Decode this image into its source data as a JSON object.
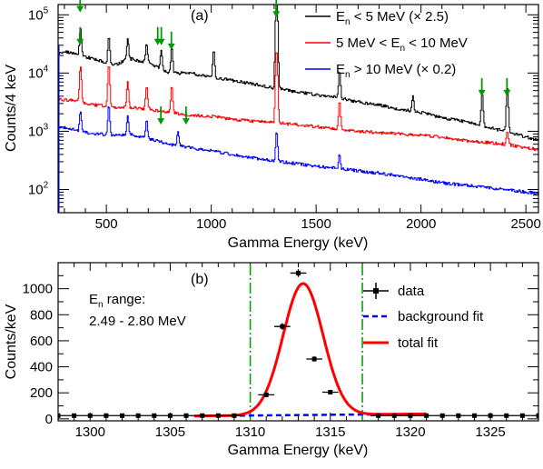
{
  "chart_data": [
    {
      "type": "line",
      "panel_label": "(a)",
      "xlabel": "Gamma Energy (keV)",
      "ylabel": "Counts/4 keV",
      "x_scale": "linear",
      "y_scale": "log",
      "xlim": [
        270,
        2560
      ],
      "ylim": [
        40,
        150000
      ],
      "x_ticks": [
        500,
        1000,
        1500,
        2000,
        2500
      ],
      "x_tick_labels": [
        "500",
        "1000",
        "1500",
        "2000",
        "2500"
      ],
      "y_ticks": [
        100,
        1000,
        10000,
        100000
      ],
      "y_tick_labels": [
        "10",
        "10",
        "10",
        "10"
      ],
      "y_tick_exponents": [
        "2",
        "3",
        "4",
        "5"
      ],
      "legend_position": "top-right",
      "series": [
        {
          "name": "E_n < 5 MeV (× 2.5)",
          "legend_main": "E",
          "legend_sub": "n",
          "legend_rest": " < 5 MeV  (× 2.5)",
          "color": "#000000",
          "x": [
            280,
            300,
            350,
            400,
            450,
            500,
            550,
            600,
            700,
            800,
            900,
            1000,
            1100,
            1200,
            1300,
            1400,
            1500,
            1600,
            1700,
            1800,
            1900,
            2000,
            2100,
            2200,
            2300,
            2400,
            2500,
            2560
          ],
          "y": [
            22000,
            23000,
            22000,
            19000,
            17000,
            15000,
            14000,
            18000,
            15000,
            10000,
            10000,
            8500,
            7500,
            6500,
            5500,
            4800,
            4200,
            3800,
            3200,
            2800,
            2400,
            2100,
            1700,
            1500,
            1200,
            1000,
            800,
            700
          ],
          "peaks": [
            {
              "x": 375,
              "y": 58000
            },
            {
              "x": 510,
              "y": 42000
            },
            {
              "x": 600,
              "y": 38000
            },
            {
              "x": 690,
              "y": 32000
            },
            {
              "x": 760,
              "y": 24000
            },
            {
              "x": 810,
              "y": 28000
            },
            {
              "x": 1010,
              "y": 25000
            },
            {
              "x": 1310,
              "y": 230000
            },
            {
              "x": 1610,
              "y": 11000
            },
            {
              "x": 1960,
              "y": 4200
            },
            {
              "x": 2290,
              "y": 4500
            },
            {
              "x": 2410,
              "y": 6000
            }
          ]
        },
        {
          "name": "5 MeV < E_n < 10 MeV",
          "legend_main": "5 MeV < E",
          "legend_sub": "n",
          "legend_rest": " < 10 MeV",
          "color": "#ff0000",
          "x": [
            280,
            300,
            350,
            400,
            450,
            500,
            550,
            600,
            700,
            800,
            900,
            1000,
            1100,
            1200,
            1300,
            1400,
            1500,
            1600,
            1700,
            1800,
            1900,
            2000,
            2100,
            2200,
            2300,
            2400,
            2500,
            2560
          ],
          "y": [
            3500,
            3500,
            3300,
            3000,
            2800,
            2700,
            2500,
            2600,
            2400,
            2100,
            1900,
            1800,
            1600,
            1500,
            1400,
            1300,
            1200,
            1100,
            1000,
            950,
            900,
            850,
            800,
            700,
            650,
            600,
            520,
            480
          ],
          "peaks": [
            {
              "x": 375,
              "y": 13000
            },
            {
              "x": 510,
              "y": 14000
            },
            {
              "x": 600,
              "y": 7000
            },
            {
              "x": 690,
              "y": 6000
            },
            {
              "x": 810,
              "y": 6000
            },
            {
              "x": 1310,
              "y": 25000
            },
            {
              "x": 1610,
              "y": 3300
            },
            {
              "x": 2410,
              "y": 1000
            }
          ]
        },
        {
          "name": "E_n > 10 MeV (× 0.2)",
          "legend_main": "E",
          "legend_sub": "n",
          "legend_rest": " > 10 MeV  (× 0.2)",
          "color": "#0000ff",
          "x": [
            280,
            300,
            350,
            400,
            450,
            500,
            550,
            600,
            700,
            800,
            900,
            1000,
            1100,
            1200,
            1300,
            1400,
            1500,
            1600,
            1700,
            1800,
            1900,
            2000,
            2100,
            2200,
            2300,
            2400,
            2500,
            2560
          ],
          "y": [
            1150,
            1150,
            1050,
            950,
            900,
            880,
            850,
            900,
            750,
            600,
            520,
            460,
            400,
            350,
            310,
            280,
            250,
            230,
            210,
            190,
            170,
            150,
            130,
            120,
            110,
            100,
            90,
            85
          ],
          "peaks": [
            {
              "x": 375,
              "y": 2200
            },
            {
              "x": 510,
              "y": 2800
            },
            {
              "x": 600,
              "y": 1800
            },
            {
              "x": 690,
              "y": 1600
            },
            {
              "x": 840,
              "y": 1000
            },
            {
              "x": 1310,
              "y": 1000
            },
            {
              "x": 1610,
              "y": 400
            }
          ]
        }
      ],
      "annotations": {
        "arrow_color": "#009900",
        "arrows": [
          {
            "x": 375,
            "y": 110000
          },
          {
            "x": 375,
            "y": 30000
          },
          {
            "x": 745,
            "y": 30000
          },
          {
            "x": 762,
            "y": 30000
          },
          {
            "x": 810,
            "y": 25000
          },
          {
            "x": 1310,
            "y": 90000
          },
          {
            "x": 2290,
            "y": 4000
          },
          {
            "x": 2410,
            "y": 4000
          },
          {
            "x": 760,
            "y": 1300
          },
          {
            "x": 880,
            "y": 1300
          }
        ]
      }
    },
    {
      "type": "scatter",
      "panel_label": "(b)",
      "xlabel": "Gamma Energy (keV)",
      "ylabel": "Counts/keV",
      "x_scale": "linear",
      "y_scale": "linear",
      "xlim": [
        1298,
        1328
      ],
      "ylim": [
        -15,
        1200
      ],
      "x_ticks": [
        1300,
        1305,
        1310,
        1315,
        1320,
        1325
      ],
      "x_tick_labels": [
        "1300",
        "1305",
        "1310",
        "1315",
        "1320",
        "1325"
      ],
      "y_ticks": [
        0,
        200,
        400,
        600,
        800,
        1000
      ],
      "y_tick_labels": [
        "0",
        "200",
        "400",
        "600",
        "800",
        "1000"
      ],
      "annotation": {
        "main": "E",
        "sub": "n",
        "rest": " range:",
        "line2": "2.49 - 2.80 MeV"
      },
      "vertical_lines": {
        "x": [
          1310,
          1317
        ],
        "color": "#009900",
        "style": "dash-dot"
      },
      "legend_position": "top-right",
      "series": [
        {
          "name": "data",
          "color": "#000000",
          "x": [
            1298,
            1299,
            1300,
            1301,
            1302,
            1303,
            1304,
            1305,
            1306,
            1307,
            1308,
            1309,
            1311,
            1312,
            1313,
            1314,
            1315,
            1318,
            1319,
            1320,
            1321,
            1322,
            1323,
            1324,
            1325,
            1326,
            1327,
            1328
          ],
          "y": [
            25,
            25,
            25,
            25,
            25,
            25,
            25,
            25,
            25,
            25,
            25,
            25,
            185,
            710,
            1120,
            460,
            205,
            25,
            25,
            25,
            25,
            25,
            25,
            25,
            25,
            25,
            25,
            25
          ],
          "xerr": 0.5,
          "yerr": [
            5,
            5,
            5,
            5,
            5,
            5,
            5,
            5,
            5,
            5,
            5,
            5,
            15,
            25,
            30,
            20,
            15,
            5,
            5,
            5,
            5,
            5,
            5,
            5,
            5,
            5,
            5,
            5
          ]
        },
        {
          "name": "background fit",
          "color": "#0000ff",
          "style": "dashed",
          "x": [
            1306.5,
            1321
          ],
          "y": [
            22,
            38
          ]
        },
        {
          "name": "total fit",
          "color": "#ff0000",
          "style": "solid",
          "model": "gaussian_plus_background",
          "x_range": [
            1306.5,
            1321
          ],
          "mean": 1313.3,
          "sigma": 1.25,
          "amplitude": 1010
        }
      ]
    }
  ]
}
